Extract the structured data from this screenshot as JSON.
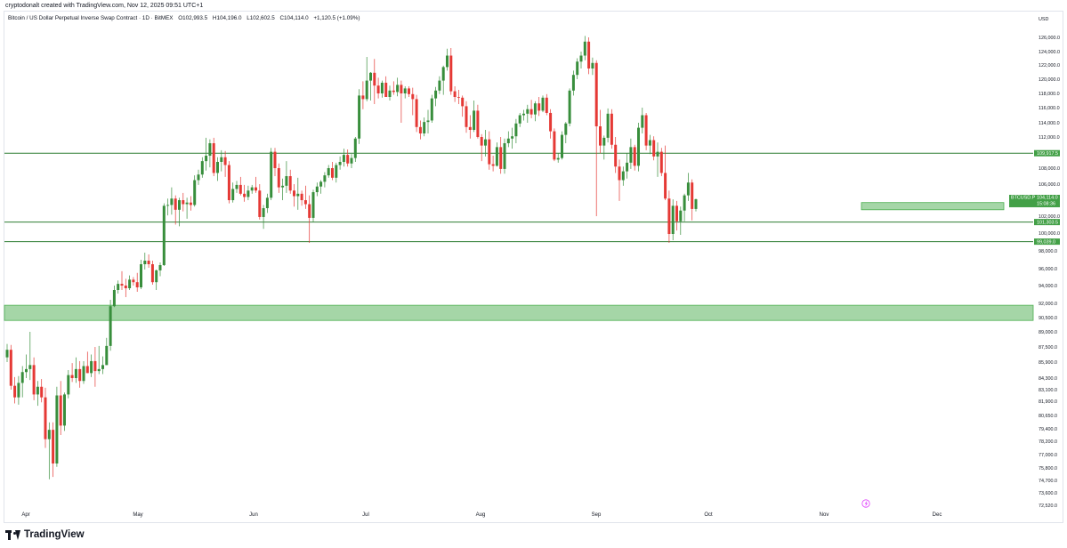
{
  "attribution": "cryptodonalt created with TradingView.com, Nov 12, 2025 09:51 UTC+1",
  "header": {
    "symbol": "Bitcoin / US Dollar Perpetual Inverse Swap Contract · 1D · BitMEX",
    "open": "O102,993.5",
    "high": "H104,196.0",
    "low": "L102,602.5",
    "close": "C104,114.0",
    "change": "+1,120.5 (+1.09%)"
  },
  "footer": {
    "logo_text": "TradingView"
  },
  "colors": {
    "up": "#388e3c",
    "down": "#e53935",
    "line": "#2e7d32",
    "zone_fill": "#a5d6a7",
    "zone_border": "#4caf50",
    "label_bg": "#43a047"
  },
  "chart_data": {
    "type": "candlestick",
    "currency_label": "USD",
    "y_ticks": [
      "126,000.0",
      "124,000.0",
      "122,000.0",
      "120,000.0",
      "118,000.0",
      "116,000.0",
      "114,000.0",
      "112,000.0",
      "108,000.0",
      "106,000.0",
      "102,000.0",
      "100,000.0",
      "98,000.0",
      "96,000.0",
      "94,000.0",
      "92,000.0",
      "90,500.0",
      "89,000.0",
      "87,500.0",
      "85,900.0",
      "84,300.0",
      "83,100.0",
      "81,900.0",
      "80,650.0",
      "79,400.0",
      "78,200.0",
      "77,000.0",
      "75,800.0",
      "74,700.0",
      "73,600.0",
      "72,520.0"
    ],
    "x_ticks": [
      "Apr",
      "May",
      "Jun",
      "Jul",
      "Aug",
      "Sep",
      "Oct",
      "Nov",
      "Dec"
    ],
    "horizontal_levels": [
      {
        "label": "109,917.5",
        "value": 109917.5
      },
      {
        "label": "101,303.5",
        "value": 101303.5
      },
      {
        "label": "99,039.0",
        "value": 99039
      }
    ],
    "zones": [
      {
        "from": 90200,
        "to": 91800,
        "start": "Apr",
        "extends_right": true
      },
      {
        "from": 102800,
        "to": 103700,
        "start": "Nov 9",
        "end": "Dec 18"
      }
    ],
    "current_price": {
      "symbol": "BTCUSD.P",
      "value": "104,114.0",
      "countdown": "15:08:36"
    },
    "candles": [
      [
        86400,
        87800,
        85900,
        87200
      ],
      [
        87200,
        87700,
        83100,
        83500
      ],
      [
        83500,
        84400,
        81700,
        82300
      ],
      [
        82300,
        84500,
        81600,
        83800
      ],
      [
        83800,
        85500,
        82300,
        84900
      ],
      [
        84900,
        86700,
        84300,
        85200
      ],
      [
        85200,
        89000,
        84100,
        85600
      ],
      [
        85600,
        86400,
        82000,
        82600
      ],
      [
        82600,
        84000,
        81500,
        83400
      ],
      [
        83400,
        84200,
        81800,
        82300
      ],
      [
        82300,
        83300,
        77600,
        78400
      ],
      [
        78400,
        80000,
        74800,
        79300
      ],
      [
        79300,
        80000,
        75000,
        76200
      ],
      [
        76200,
        83400,
        75900,
        82500
      ],
      [
        82500,
        84000,
        78800,
        79700
      ],
      [
        79700,
        82800,
        79200,
        82600
      ],
      [
        82600,
        85100,
        82200,
        84600
      ],
      [
        84600,
        85800,
        83900,
        84300
      ],
      [
        84300,
        86400,
        83800,
        85200
      ],
      [
        85200,
        86000,
        83300,
        84000
      ],
      [
        84000,
        86000,
        83700,
        85500
      ],
      [
        85500,
        87000,
        84800,
        84800
      ],
      [
        84800,
        86700,
        84400,
        86000
      ],
      [
        86000,
        87500,
        83400,
        85000
      ],
      [
        85000,
        87600,
        84700,
        85200
      ],
      [
        85200,
        86500,
        84700,
        85600
      ],
      [
        85600,
        88400,
        85600,
        87600
      ],
      [
        87600,
        92400,
        87100,
        91700
      ],
      [
        91700,
        94000,
        91600,
        93500
      ],
      [
        93500,
        94600,
        93100,
        94200
      ],
      [
        94200,
        95700,
        93500,
        94000
      ],
      [
        94000,
        94800,
        92700,
        93700
      ],
      [
        93700,
        95200,
        93500,
        94700
      ],
      [
        94700,
        95000,
        94000,
        94400
      ],
      [
        94400,
        95500,
        93300,
        93800
      ],
      [
        93800,
        97000,
        93600,
        96500
      ],
      [
        96500,
        97800,
        95900,
        96900
      ],
      [
        96900,
        97600,
        96100,
        96500
      ],
      [
        96500,
        96900,
        94100,
        94400
      ],
      [
        94400,
        95900,
        93500,
        95800
      ],
      [
        95800,
        96700,
        95100,
        96400
      ],
      [
        96400,
        103600,
        96300,
        103300
      ],
      [
        103300,
        104200,
        102100,
        103400
      ],
      [
        103400,
        105600,
        102200,
        104200
      ],
      [
        104200,
        104600,
        101000,
        102800
      ],
      [
        102800,
        104300,
        100800,
        104000
      ],
      [
        104000,
        104900,
        102600,
        103500
      ],
      [
        103500,
        104300,
        101700,
        103700
      ],
      [
        103700,
        104500,
        102700,
        103400
      ],
      [
        103400,
        107100,
        103200,
        106500
      ],
      [
        106500,
        107800,
        105900,
        107200
      ],
      [
        107200,
        109400,
        106800,
        108900
      ],
      [
        108900,
        111900,
        107700,
        109600
      ],
      [
        109600,
        111700,
        108100,
        111200
      ],
      [
        111200,
        111900,
        107000,
        107400
      ],
      [
        107400,
        109400,
        106400,
        108800
      ],
      [
        108800,
        110300,
        107600,
        109400
      ],
      [
        109400,
        110200,
        106900,
        108400
      ],
      [
        108400,
        108900,
        103600,
        104000
      ],
      [
        104000,
        106200,
        103700,
        105400
      ],
      [
        105400,
        106400,
        104900,
        105900
      ],
      [
        105900,
        106900,
        104600,
        104800
      ],
      [
        104800,
        105900,
        103800,
        104400
      ],
      [
        104400,
        105800,
        104000,
        105200
      ],
      [
        105200,
        105900,
        104800,
        105600
      ],
      [
        105600,
        106900,
        104900,
        105200
      ],
      [
        105200,
        106000,
        101600,
        101900
      ],
      [
        101900,
        103400,
        100500,
        103000
      ],
      [
        103000,
        104800,
        102400,
        104300
      ],
      [
        104300,
        110600,
        104000,
        110100
      ],
      [
        110100,
        110600,
        107000,
        108000
      ],
      [
        108000,
        108600,
        104900,
        105600
      ],
      [
        105600,
        106700,
        104000,
        105800
      ],
      [
        105800,
        108900,
        104900,
        107000
      ],
      [
        107000,
        107800,
        104800,
        105200
      ],
      [
        105200,
        106000,
        103200,
        104500
      ],
      [
        104500,
        106800,
        102800,
        104800
      ],
      [
        104800,
        105200,
        103300,
        104000
      ],
      [
        104000,
        105800,
        102900,
        103500
      ],
      [
        103500,
        104600,
        98900,
        101800
      ],
      [
        101800,
        105300,
        101300,
        105000
      ],
      [
        105000,
        106200,
        104500,
        105700
      ],
      [
        105700,
        106500,
        104800,
        106300
      ],
      [
        106300,
        107500,
        105600,
        107100
      ],
      [
        107100,
        108400,
        106800,
        108000
      ],
      [
        108000,
        108800,
        106500,
        106800
      ],
      [
        106800,
        108700,
        106200,
        108400
      ],
      [
        108400,
        109500,
        107800,
        108800
      ],
      [
        108800,
        110500,
        108200,
        109700
      ],
      [
        109700,
        110400,
        108200,
        108600
      ],
      [
        108600,
        109800,
        108000,
        109300
      ],
      [
        109300,
        112000,
        108800,
        111800
      ],
      [
        111800,
        118600,
        111100,
        117700
      ],
      [
        117700,
        119700,
        115800,
        117200
      ],
      [
        117200,
        123200,
        116900,
        119800
      ],
      [
        119800,
        121000,
        117000,
        120900
      ],
      [
        120900,
        122900,
        116500,
        119100
      ],
      [
        119100,
        120200,
        117300,
        118000
      ],
      [
        118000,
        119800,
        117400,
        119500
      ],
      [
        119500,
        120400,
        117900,
        117500
      ],
      [
        117500,
        119100,
        117000,
        118400
      ],
      [
        118400,
        119700,
        117800,
        118200
      ],
      [
        118200,
        120200,
        117600,
        119200
      ],
      [
        119200,
        119800,
        114000,
        118000
      ],
      [
        118000,
        119000,
        117300,
        118700
      ],
      [
        118700,
        119000,
        117500,
        117900
      ],
      [
        117900,
        118800,
        115000,
        117200
      ],
      [
        117200,
        117800,
        112700,
        113400
      ],
      [
        113400,
        114300,
        111700,
        112500
      ],
      [
        112500,
        114700,
        112100,
        114100
      ],
      [
        114100,
        115700,
        112500,
        114300
      ],
      [
        114300,
        117800,
        114000,
        117300
      ],
      [
        117300,
        118900,
        116200,
        118400
      ],
      [
        118400,
        120400,
        117900,
        119800
      ],
      [
        119800,
        121900,
        117800,
        121700
      ],
      [
        121700,
        124400,
        121200,
        123400
      ],
      [
        123400,
        124500,
        117800,
        118300
      ],
      [
        118300,
        119000,
        116800,
        117500
      ],
      [
        117500,
        118500,
        116500,
        117400
      ],
      [
        117400,
        117700,
        114800,
        116200
      ],
      [
        116200,
        116900,
        112600,
        113400
      ],
      [
        113400,
        115000,
        111800,
        113000
      ],
      [
        113000,
        117000,
        112700,
        115600
      ],
      [
        115600,
        116400,
        111800,
        112000
      ],
      [
        112000,
        112400,
        108900,
        110900
      ],
      [
        110900,
        113000,
        109500,
        111700
      ],
      [
        111700,
        112800,
        107800,
        108500
      ],
      [
        108500,
        109600,
        107600,
        108300
      ],
      [
        108300,
        111300,
        108200,
        110700
      ],
      [
        110700,
        112000,
        107300,
        107900
      ],
      [
        107900,
        111800,
        107300,
        111200
      ],
      [
        111200,
        112800,
        110700,
        111800
      ],
      [
        111800,
        113300,
        110500,
        112100
      ],
      [
        112100,
        114500,
        111200,
        113900
      ],
      [
        113900,
        115300,
        113400,
        115000
      ],
      [
        115000,
        115700,
        114300,
        115200
      ],
      [
        115200,
        116400,
        114000,
        115800
      ],
      [
        115800,
        117100,
        114600,
        115100
      ],
      [
        115100,
        116900,
        114200,
        116600
      ],
      [
        116600,
        117500,
        114900,
        115600
      ],
      [
        115600,
        117700,
        115400,
        117400
      ],
      [
        117400,
        117900,
        115000,
        115300
      ],
      [
        115300,
        115800,
        111800,
        112800
      ],
      [
        112800,
        113200,
        108900,
        109100
      ],
      [
        109100,
        109900,
        108700,
        109300
      ],
      [
        109300,
        112800,
        109100,
        112300
      ],
      [
        112300,
        114100,
        111200,
        113900
      ],
      [
        113900,
        118700,
        113500,
        118400
      ],
      [
        118400,
        121200,
        117700,
        120600
      ],
      [
        120600,
        123000,
        120000,
        122500
      ],
      [
        122500,
        124000,
        121500,
        123400
      ],
      [
        123400,
        126200,
        122700,
        125400
      ],
      [
        125400,
        126000,
        120700,
        121500
      ],
      [
        121500,
        123100,
        120600,
        122300
      ],
      [
        122300,
        122700,
        102000,
        113500
      ],
      [
        113500,
        115700,
        109900,
        110900
      ],
      [
        110900,
        112200,
        109100,
        111900
      ],
      [
        111900,
        115900,
        111300,
        115200
      ],
      [
        115200,
        115800,
        110500,
        111000
      ],
      [
        111000,
        112000,
        107400,
        108200
      ],
      [
        108200,
        109100,
        103900,
        106500
      ],
      [
        106500,
        108200,
        105800,
        107600
      ],
      [
        107600,
        109900,
        106700,
        108700
      ],
      [
        108700,
        111800,
        107900,
        110700
      ],
      [
        110700,
        111000,
        107700,
        108300
      ],
      [
        108300,
        114000,
        107600,
        113300
      ],
      [
        113300,
        116000,
        112500,
        115000
      ],
      [
        115000,
        115300,
        110300,
        110900
      ],
      [
        110900,
        112300,
        109800,
        111600
      ],
      [
        111600,
        112100,
        109000,
        109500
      ],
      [
        109500,
        111300,
        106900,
        110100
      ],
      [
        110100,
        110600,
        107000,
        107400
      ],
      [
        107400,
        110900,
        104000,
        104200
      ],
      [
        104200,
        105200,
        98900,
        99900
      ],
      [
        99900,
        104100,
        99200,
        103300
      ],
      [
        103300,
        103900,
        100300,
        101400
      ],
      [
        101400,
        103200,
        99800,
        102700
      ],
      [
        102700,
        104800,
        101400,
        104600
      ],
      [
        104600,
        107400,
        103900,
        106200
      ],
      [
        106200,
        106600,
        101500,
        102900
      ],
      [
        102900,
        104200,
        102600,
        104114
      ]
    ]
  }
}
